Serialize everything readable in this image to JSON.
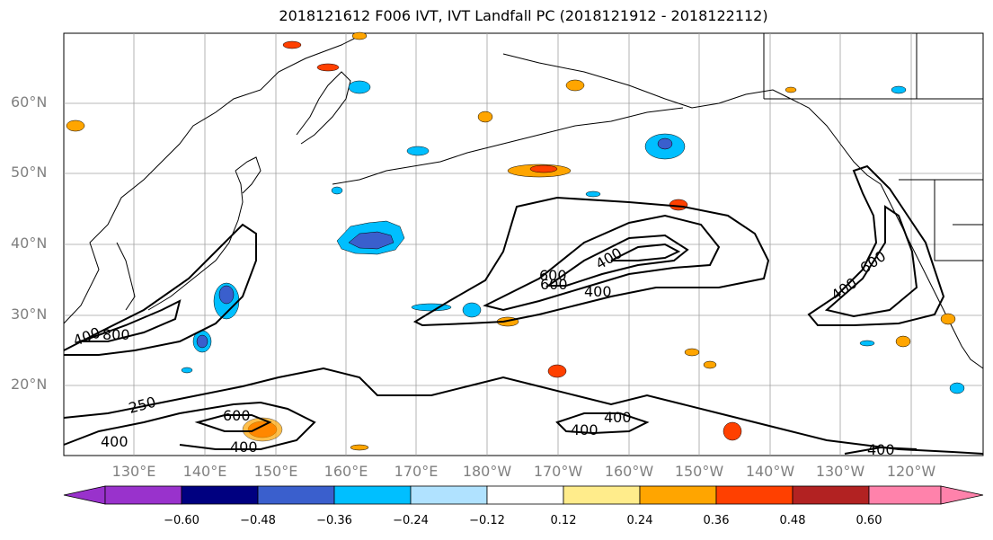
{
  "title": "2018121612 F006 IVT, IVT Landfall PC (2018121912 - 2018122112)",
  "lat_labels": [
    "60°N",
    "50°N",
    "40°N",
    "30°N",
    "20°N"
  ],
  "lon_labels": [
    "130°E",
    "140°E",
    "150°E",
    "160°E",
    "170°E",
    "180°W",
    "170°W",
    "160°W",
    "150°W",
    "140°W",
    "130°W",
    "120°W"
  ],
  "colorbar": {
    "ticks": [
      "−0.60",
      "−0.48",
      "−0.36",
      "−0.24",
      "−0.12",
      "0.12",
      "0.24",
      "0.36",
      "0.48",
      "0.60"
    ],
    "colors": [
      "#9932cc",
      "#000080",
      "#3a5fcd",
      "#00bfff",
      "#b0e2ff",
      "#ffffff",
      "#ffec8b",
      "#ffa500",
      "#ff4000",
      "#b22222",
      "#ff82ab"
    ]
  },
  "contour_labels": [
    "400",
    "600",
    "800",
    "600",
    "400",
    "400",
    "600",
    "250",
    "600",
    "400",
    "400",
    "400",
    "400",
    "400",
    "400"
  ]
}
